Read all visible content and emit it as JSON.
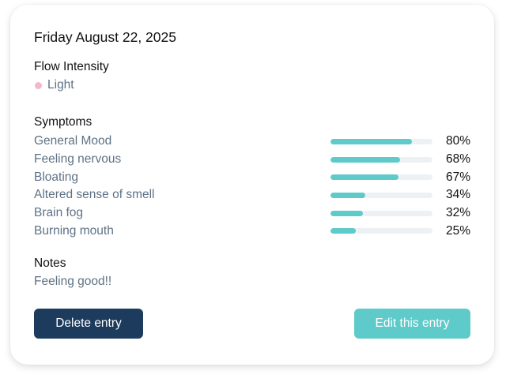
{
  "entry": {
    "date": "Friday August 22, 2025"
  },
  "flow": {
    "label": "Flow Intensity",
    "value": "Light",
    "dot_color": "#f2b8cb"
  },
  "symptoms": {
    "label": "Symptoms",
    "bar_color": "#5fcaca",
    "track_color": "#eef1f4",
    "items": [
      {
        "name": "General Mood",
        "percent": 80,
        "percent_label": "80%"
      },
      {
        "name": "Feeling nervous",
        "percent": 68,
        "percent_label": "68%"
      },
      {
        "name": "Bloating",
        "percent": 67,
        "percent_label": "67%"
      },
      {
        "name": "Altered sense of smell",
        "percent": 34,
        "percent_label": "34%"
      },
      {
        "name": "Brain fog",
        "percent": 32,
        "percent_label": "32%"
      },
      {
        "name": "Burning mouth",
        "percent": 25,
        "percent_label": "25%"
      }
    ]
  },
  "notes": {
    "label": "Notes",
    "value": "Feeling good!!"
  },
  "actions": {
    "delete_label": "Delete entry",
    "edit_label": "Edit this entry",
    "delete_color": "#1d3b5c",
    "edit_color": "#5fcaca"
  }
}
